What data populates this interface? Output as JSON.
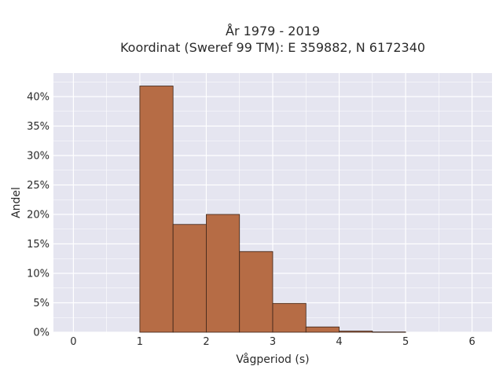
{
  "chart_data": {
    "type": "bar",
    "title_line1": "År 1979 - 2019",
    "title_line2": "Koordinat (Sweref 99 TM): E 359882, N 6172340",
    "xlabel": "Vågperiod (s)",
    "ylabel": "Andel",
    "xlim": [
      -0.3,
      6.3
    ],
    "ylim": [
      0,
      44
    ],
    "x_ticks": [
      0,
      1,
      2,
      3,
      4,
      5,
      6
    ],
    "y_ticks": [
      0,
      5,
      10,
      15,
      20,
      25,
      30,
      35,
      40
    ],
    "y_tick_labels": [
      "0%",
      "5%",
      "10%",
      "15%",
      "20%",
      "25%",
      "30%",
      "35%",
      "40%"
    ],
    "bin_width": 0.5,
    "bins": [
      {
        "x0": 1.0,
        "x1": 1.5,
        "value": 41.8
      },
      {
        "x0": 1.5,
        "x1": 2.0,
        "value": 18.3
      },
      {
        "x0": 2.0,
        "x1": 2.5,
        "value": 20.0
      },
      {
        "x0": 2.5,
        "x1": 3.0,
        "value": 13.7
      },
      {
        "x0": 3.0,
        "x1": 3.5,
        "value": 4.9
      },
      {
        "x0": 3.5,
        "x1": 4.0,
        "value": 0.9
      },
      {
        "x0": 4.0,
        "x1": 4.5,
        "value": 0.2
      },
      {
        "x0": 4.5,
        "x1": 5.0,
        "value": 0.05
      }
    ],
    "grid": true,
    "colors": {
      "bar": "#b66c45",
      "bar_edge": "#3a2418",
      "plot_bg": "#e5e5f0",
      "grid": "#ffffff"
    }
  }
}
